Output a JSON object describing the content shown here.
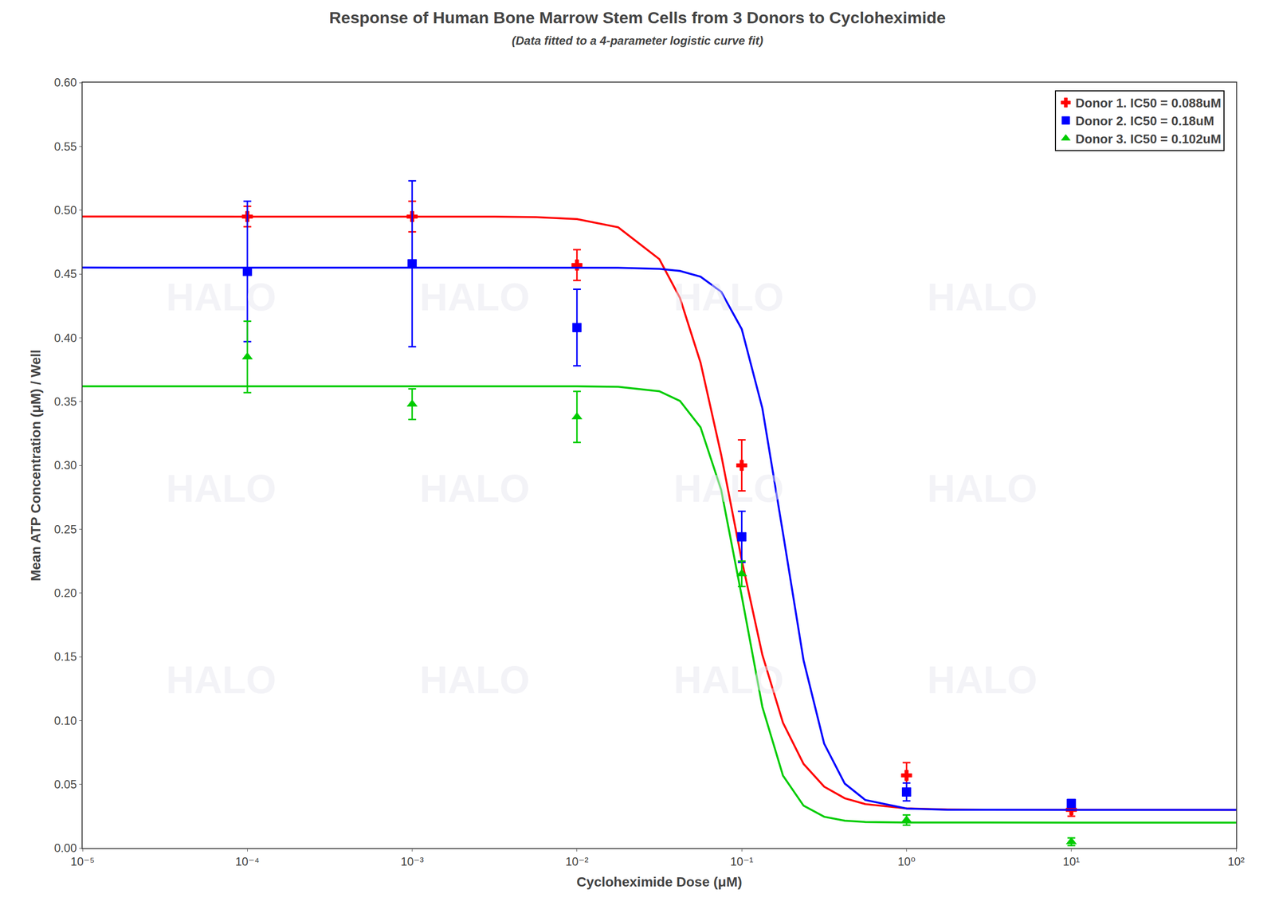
{
  "chart_data": {
    "type": "scatter",
    "title": "Response of Human Bone Marrow Stem Cells from 3 Donors to Cycloheximide",
    "subtitle": "(Data fitted to a 4-parameter logistic curve fit)",
    "x_label": "Cycloheximide Dose (μM)",
    "y_label": "Mean ATP Concentration (μM) / Well",
    "log": "x",
    "xlim": [
      1e-05,
      100
    ],
    "xticks": [
      {
        "value": 1e-05,
        "label": "10⁻⁵"
      },
      {
        "value": 0.0001,
        "label": "10⁻⁴"
      },
      {
        "value": 0.001,
        "label": "10⁻³"
      },
      {
        "value": 0.01,
        "label": "10⁻²"
      },
      {
        "value": 0.1,
        "label": "10⁻¹"
      },
      {
        "value": 1,
        "label": "10⁰"
      },
      {
        "value": 10,
        "label": "10¹"
      },
      {
        "value": 100,
        "label": "10²"
      }
    ],
    "ylim": [
      0.0,
      0.6
    ],
    "yticks": [
      {
        "value": 0.0,
        "label": "0.00"
      },
      0.05,
      {
        "value": 0.1,
        "label": "0.10"
      },
      0.15,
      {
        "value": 0.2,
        "label": "0.20"
      },
      0.25,
      {
        "value": 0.3,
        "label": "0.30"
      },
      0.35,
      {
        "value": 0.4,
        "label": "0.40"
      },
      0.45,
      {
        "value": 0.5,
        "label": "0.50"
      },
      0.55,
      {
        "value": 0.6,
        "label": "0.60"
      }
    ],
    "grid": false,
    "legend": "upper right",
    "watermark": "HALO",
    "fit_x": [
      1e-05,
      0.0001,
      0.001,
      0.0031623,
      0.0056234,
      0.01,
      0.017783,
      0.031623,
      0.04217,
      0.056234,
      0.074989,
      0.1,
      0.13335,
      0.17783,
      0.23714,
      0.31623,
      0.4217,
      0.56234,
      1,
      1.7783,
      3.1623,
      10,
      100
    ],
    "series": [
      {
        "name": "Donor 1. IC50 = 0.088uM",
        "color": "#ff0000",
        "marker": "plus",
        "x": [
          0.0001,
          0.001,
          0.01,
          0.1,
          1.0,
          10.0
        ],
        "values": [
          0.495,
          0.495,
          0.457,
          0.3,
          0.057,
          0.03
        ],
        "errors": [
          0.008,
          0.012,
          0.012,
          0.02,
          0.01,
          0.005
        ],
        "fit_values": [
          0.495,
          0.495,
          0.495,
          0.4949,
          0.4945,
          0.493,
          0.4866,
          0.4616,
          0.4312,
          0.3805,
          0.3084,
          0.2257,
          0.1515,
          0.0983,
          0.066,
          0.0482,
          0.0391,
          0.0345,
          0.0311,
          0.0303,
          0.0301,
          0.03,
          0.03
        ]
      },
      {
        "name": "Donor 2. IC50 = 0.18uM",
        "color": "#0000ff",
        "marker": "square",
        "x": [
          0.0001,
          0.001,
          0.01,
          0.1,
          1.0,
          10.0
        ],
        "values": [
          0.452,
          0.458,
          0.408,
          0.244,
          0.044,
          0.035
        ],
        "errors": [
          0.055,
          0.065,
          0.03,
          0.02,
          0.007,
          0.003
        ],
        "fit_values": [
          0.455,
          0.455,
          0.455,
          0.455,
          0.455,
          0.455,
          0.4549,
          0.454,
          0.4524,
          0.4479,
          0.4361,
          0.4068,
          0.3448,
          0.247,
          0.1472,
          0.0819,
          0.0506,
          0.0377,
          0.031,
          0.0301,
          0.03,
          0.03,
          0.03
        ]
      },
      {
        "name": "Donor 3. IC50 = 0.102uM",
        "color": "#00cc00",
        "marker": "triangle-up",
        "x": [
          0.0001,
          0.001,
          0.01,
          0.1,
          1.0,
          10.0
        ],
        "values": [
          0.385,
          0.348,
          0.338,
          0.215,
          0.022,
          0.005
        ],
        "errors": [
          0.028,
          0.012,
          0.02,
          0.01,
          0.004,
          0.003
        ],
        "fit_values": [
          0.362,
          0.362,
          0.362,
          0.362,
          0.362,
          0.362,
          0.3616,
          0.3581,
          0.3505,
          0.3298,
          0.2809,
          0.1974,
          0.1107,
          0.0569,
          0.0333,
          0.0246,
          0.0215,
          0.0205,
          0.0201,
          0.02,
          0.02,
          0.02,
          0.02
        ]
      }
    ]
  }
}
